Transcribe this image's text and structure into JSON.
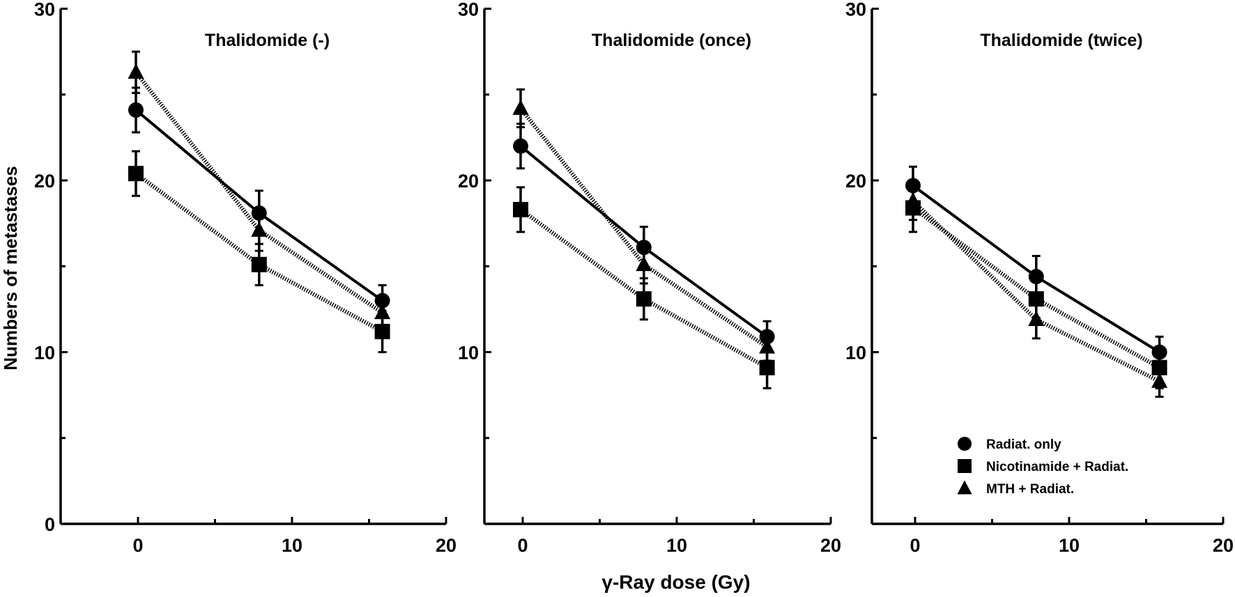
{
  "chart_data": [
    {
      "type": "line",
      "title": "Thalidomide (-)",
      "xlim": [
        -5,
        20
      ],
      "ylim": [
        0,
        30
      ],
      "x": [
        0,
        8,
        16
      ],
      "xticks": [
        0,
        10,
        20
      ],
      "yticks": [
        0,
        10,
        20,
        30
      ],
      "series": [
        {
          "name": "Radiat. only",
          "marker": "circle",
          "line": "solid",
          "values": [
            24.1,
            18.1,
            13.0
          ],
          "error": [
            1.3,
            1.3,
            0.9
          ]
        },
        {
          "name": "Nicotinamide + Radiat.",
          "marker": "square",
          "line": "dotted",
          "values": [
            20.4,
            15.1,
            11.2
          ],
          "error": [
            1.3,
            1.2,
            1.2
          ]
        },
        {
          "name": "MTH + Radiat.",
          "marker": "triangle",
          "line": "dotted",
          "values": [
            26.3,
            17.1,
            12.3
          ],
          "error": [
            1.2,
            1.2,
            0.8
          ]
        }
      ]
    },
    {
      "type": "line",
      "title": "Thalidomide (once)",
      "xlim": [
        -5,
        20
      ],
      "ylim": [
        0,
        30
      ],
      "x": [
        0,
        8,
        16
      ],
      "xticks": [
        0,
        10,
        20
      ],
      "yticks": [
        10,
        20,
        30
      ],
      "series": [
        {
          "name": "Radiat. only",
          "marker": "circle",
          "line": "solid",
          "values": [
            22.0,
            16.1,
            10.9
          ],
          "error": [
            1.3,
            1.2,
            0.9
          ]
        },
        {
          "name": "Nicotinamide + Radiat.",
          "marker": "square",
          "line": "dotted",
          "values": [
            18.3,
            13.1,
            9.1
          ],
          "error": [
            1.3,
            1.2,
            1.2
          ]
        },
        {
          "name": "MTH + Radiat.",
          "marker": "triangle",
          "line": "dotted",
          "values": [
            24.2,
            15.1,
            10.3
          ],
          "error": [
            1.1,
            1.1,
            0.8
          ]
        }
      ]
    },
    {
      "type": "line",
      "title": "Thalidomide (twice)",
      "xlim": [
        -5,
        20
      ],
      "ylim": [
        0,
        30
      ],
      "x": [
        0,
        8,
        16
      ],
      "xticks": [
        0,
        10,
        20
      ],
      "yticks": [
        10,
        20,
        30
      ],
      "series": [
        {
          "name": "Radiat. only",
          "marker": "circle",
          "line": "solid",
          "values": [
            19.7,
            14.4,
            10.0
          ],
          "error": [
            1.1,
            1.2,
            0.9
          ]
        },
        {
          "name": "Nicotinamide + Radiat.",
          "marker": "square",
          "line": "dotted",
          "values": [
            18.4,
            13.1,
            9.1
          ],
          "error": [
            1.4,
            1.1,
            1.2
          ]
        },
        {
          "name": "MTH + Radiat.",
          "marker": "triangle",
          "line": "dotted",
          "values": [
            18.8,
            11.9,
            8.3
          ],
          "error": [
            1.1,
            1.1,
            0.9
          ]
        }
      ]
    }
  ],
  "xlabel": "γ-Ray dose (Gy)",
  "ylabel": "Numbers of metastases",
  "legend": {
    "placement": "lower-right of third panel",
    "entries": [
      {
        "label": "Radiat. only",
        "marker": "circle"
      },
      {
        "label": "Nicotinamide + Radiat.",
        "marker": "square"
      },
      {
        "label": "MTH + Radiat.",
        "marker": "triangle"
      }
    ]
  },
  "colors": {
    "ink": "#000000",
    "background": "#ffffff"
  }
}
